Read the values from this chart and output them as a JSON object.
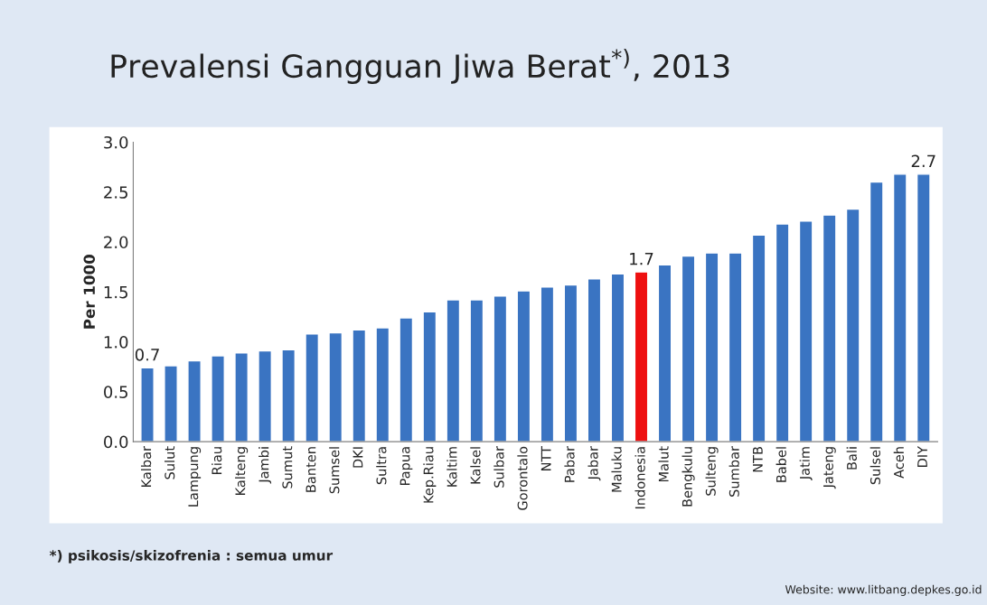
{
  "chart_data": {
    "type": "bar",
    "title": "Prevalensi Gangguan Jiwa Berat$^{*)}$, 2013",
    "ylabel": "Per 1000",
    "categories": [
      "Kalbar",
      "Sulut",
      "Lampung",
      "Riau",
      "Kalteng",
      "Jambi",
      "Sumut",
      "Banten",
      "Sumsel",
      "DKI",
      "Sultra",
      "Papua",
      "Kep.Riau",
      "Kaltim",
      "Kalsel",
      "Sulbar",
      "Gorontalo",
      "NTT",
      "Pabar",
      "Jabar",
      "Maluku",
      "Indonesia",
      "Malut",
      "Bengkulu",
      "Sulteng",
      "Sumbar",
      "NTB",
      "Babel",
      "Jatim",
      "Jateng",
      "Bali",
      "Sulsel",
      "Aceh",
      "DIY"
    ],
    "values": [
      0.74,
      0.76,
      0.81,
      0.86,
      0.89,
      0.91,
      0.92,
      1.08,
      1.09,
      1.12,
      1.14,
      1.24,
      1.3,
      1.42,
      1.42,
      1.46,
      1.51,
      1.55,
      1.57,
      1.63,
      1.68,
      1.7,
      1.77,
      1.86,
      1.89,
      1.89,
      2.07,
      2.18,
      2.21,
      2.27,
      2.33,
      2.6,
      2.68,
      2.68
    ],
    "value_labels": [
      "0.7",
      null,
      null,
      null,
      null,
      null,
      null,
      null,
      null,
      null,
      null,
      null,
      null,
      null,
      null,
      null,
      null,
      null,
      null,
      null,
      null,
      "1.7",
      null,
      null,
      null,
      null,
      null,
      null,
      null,
      null,
      null,
      null,
      null,
      "2.7"
    ],
    "colors": [
      "#3a74c2",
      "#3a74c2",
      "#3a74c2",
      "#3a74c2",
      "#3a74c2",
      "#3a74c2",
      "#3a74c2",
      "#3a74c2",
      "#3a74c2",
      "#3a74c2",
      "#3a74c2",
      "#3a74c2",
      "#3a74c2",
      "#3a74c2",
      "#3a74c2",
      "#3a74c2",
      "#3a74c2",
      "#3a74c2",
      "#3a74c2",
      "#3a74c2",
      "#3a74c2",
      "#ee1010",
      "#3a74c2",
      "#3a74c2",
      "#3a74c2",
      "#3a74c2",
      "#3a74c2",
      "#3a74c2",
      "#3a74c2",
      "#3a74c2",
      "#3a74c2",
      "#3a74c2",
      "#3a74c2",
      "#3a74c2"
    ],
    "ylim": [
      0,
      3.0
    ],
    "yticks": [
      {
        "value": 0,
        "label": "0.0"
      },
      {
        "value": 0.5,
        "label": "0.5"
      },
      {
        "value": 1.0,
        "label": "1.0"
      },
      {
        "value": 1.5,
        "label": "1.5"
      },
      {
        "value": 2.0,
        "label": "2.0"
      },
      {
        "value": 2.5,
        "label": "2.5"
      },
      {
        "value": 3.0,
        "label": "3.0"
      }
    ],
    "grid": false,
    "legend": false,
    "annotations": [
      "*) psikosis/skizofrenia : semua umur",
      "Website: www.litbang.depkes.go.id"
    ]
  }
}
